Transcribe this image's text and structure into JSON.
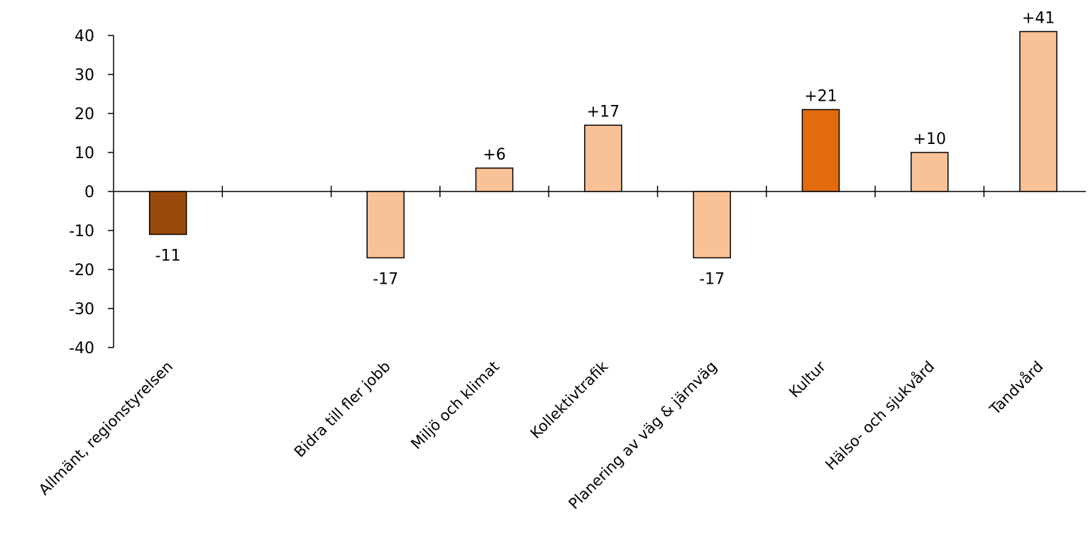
{
  "chart_data": {
    "type": "bar",
    "title": "",
    "xlabel": "",
    "ylabel": "",
    "ylim": [
      -40,
      40
    ],
    "yticks": [
      40,
      30,
      20,
      10,
      0,
      -10,
      -20,
      -30,
      -40
    ],
    "legend": "none",
    "grid": false,
    "categories": [
      "Allmänt, regionstyrelsen",
      "",
      "Bidra till fler jobb",
      "Miljö och klimat",
      "Kollektivtrafik",
      "Planering av väg & järnväg",
      "Kultur",
      "Hälso- och sjukvård",
      "Tandvård"
    ],
    "values": [
      -11,
      null,
      -17,
      6,
      17,
      -17,
      21,
      10,
      41
    ],
    "data_labels": [
      "-11",
      "",
      "-17",
      "+6",
      "+17",
      "-17",
      "+21",
      "+10",
      "+41"
    ],
    "colors": [
      "#9a4a0c",
      "",
      "#f9c196",
      "#f9c196",
      "#f9c196",
      "#f9c196",
      "#e26b0e",
      "#f9c196",
      "#f9c196"
    ]
  }
}
